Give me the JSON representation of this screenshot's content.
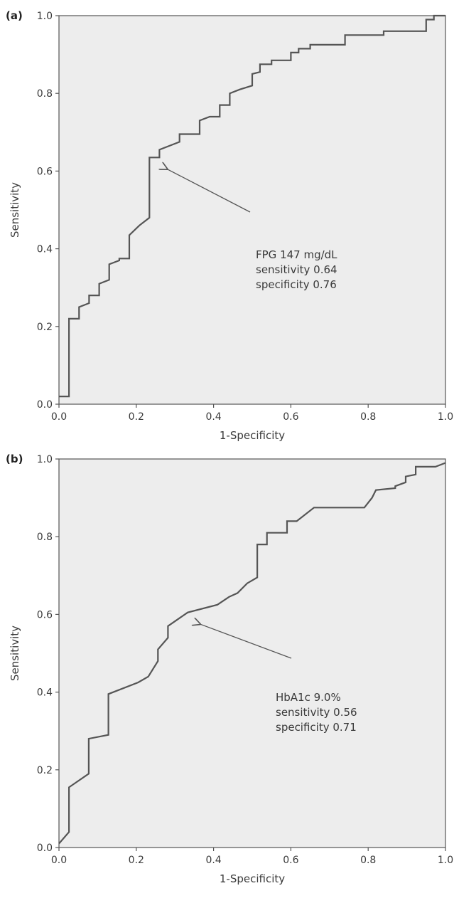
{
  "chart_data": [
    {
      "type": "line",
      "panel_label": "(a)",
      "xlabel": "1-Specificity",
      "ylabel": "Sensitivity",
      "xlim": [
        0,
        1
      ],
      "ylim": [
        0,
        1
      ],
      "xticks": [
        "0.0",
        "0.2",
        "0.4",
        "0.6",
        "0.8",
        "1.0"
      ],
      "yticks": [
        "0.0",
        "0.2",
        "0.4",
        "0.6",
        "0.8",
        "1.0"
      ],
      "grid": false,
      "series": [
        {
          "x": [
            0,
            0.026,
            0.026,
            0.052,
            0.052,
            0.078,
            0.078,
            0.104,
            0.104,
            0.13,
            0.13,
            0.156,
            0.156,
            0.182,
            0.182,
            0.208,
            0.208,
            0.234,
            0.234,
            0.26,
            0.26,
            0.312,
            0.312,
            0.364,
            0.364,
            0.39,
            0.39,
            0.416,
            0.416,
            0.442,
            0.442,
            0.468,
            0.468,
            0.5,
            0.5,
            0.52,
            0.52,
            0.55,
            0.55,
            0.6,
            0.6,
            0.62,
            0.62,
            0.65,
            0.65,
            0.7,
            0.7,
            0.74,
            0.74,
            0.84,
            0.84,
            0.95,
            0.95,
            0.97,
            0.97,
            1.0
          ],
          "y": [
            0.02,
            0.02,
            0.22,
            0.22,
            0.25,
            0.26,
            0.28,
            0.28,
            0.31,
            0.32,
            0.36,
            0.37,
            0.375,
            0.375,
            0.435,
            0.46,
            0.46,
            0.48,
            0.635,
            0.635,
            0.655,
            0.675,
            0.695,
            0.695,
            0.73,
            0.74,
            0.74,
            0.74,
            0.77,
            0.77,
            0.8,
            0.81,
            0.81,
            0.82,
            0.85,
            0.855,
            0.875,
            0.875,
            0.885,
            0.885,
            0.905,
            0.905,
            0.915,
            0.915,
            0.925,
            0.925,
            0.925,
            0.925,
            0.95,
            0.95,
            0.96,
            0.96,
            0.99,
            0.99,
            1.0,
            1.0
          ]
        }
      ],
      "annotation": {
        "lines": [
          "FPG 147 mg/dL",
          "sensitivity 0.64",
          "specificity 0.76"
        ],
        "point": [
          0.28,
          0.605
        ]
      }
    },
    {
      "type": "line",
      "panel_label": "(b)",
      "xlabel": "1-Specificity",
      "ylabel": "Sensitivity",
      "xlim": [
        0,
        1
      ],
      "ylim": [
        0,
        1
      ],
      "xticks": [
        "0.0",
        "0.2",
        "0.4",
        "0.6",
        "0.8",
        "1.0"
      ],
      "yticks": [
        "0.0",
        "0.2",
        "0.4",
        "0.6",
        "0.8",
        "1.0"
      ],
      "grid": false,
      "series": [
        {
          "x": [
            0,
            0.026,
            0.026,
            0.026,
            0.077,
            0.077,
            0.128,
            0.128,
            0.205,
            0.231,
            0.256,
            0.256,
            0.282,
            0.282,
            0.333,
            0.41,
            0.44,
            0.462,
            0.487,
            0.513,
            0.513,
            0.538,
            0.538,
            0.59,
            0.59,
            0.615,
            0.66,
            0.79,
            0.81,
            0.82,
            0.87,
            0.87,
            0.897,
            0.897,
            0.923,
            0.923,
            0.974,
            1.0
          ],
          "y": [
            0.01,
            0.04,
            0.04,
            0.155,
            0.19,
            0.28,
            0.29,
            0.395,
            0.425,
            0.44,
            0.48,
            0.51,
            0.54,
            0.57,
            0.605,
            0.625,
            0.645,
            0.655,
            0.68,
            0.695,
            0.78,
            0.78,
            0.81,
            0.81,
            0.84,
            0.84,
            0.875,
            0.875,
            0.9,
            0.92,
            0.925,
            0.93,
            0.94,
            0.955,
            0.96,
            0.98,
            0.98,
            0.99
          ]
        }
      ],
      "annotation": {
        "lines": [
          "HbA1c 9.0%",
          "sensitivity 0.56",
          "specificity 0.71"
        ],
        "point": [
          0.365,
          0.575
        ]
      }
    }
  ]
}
